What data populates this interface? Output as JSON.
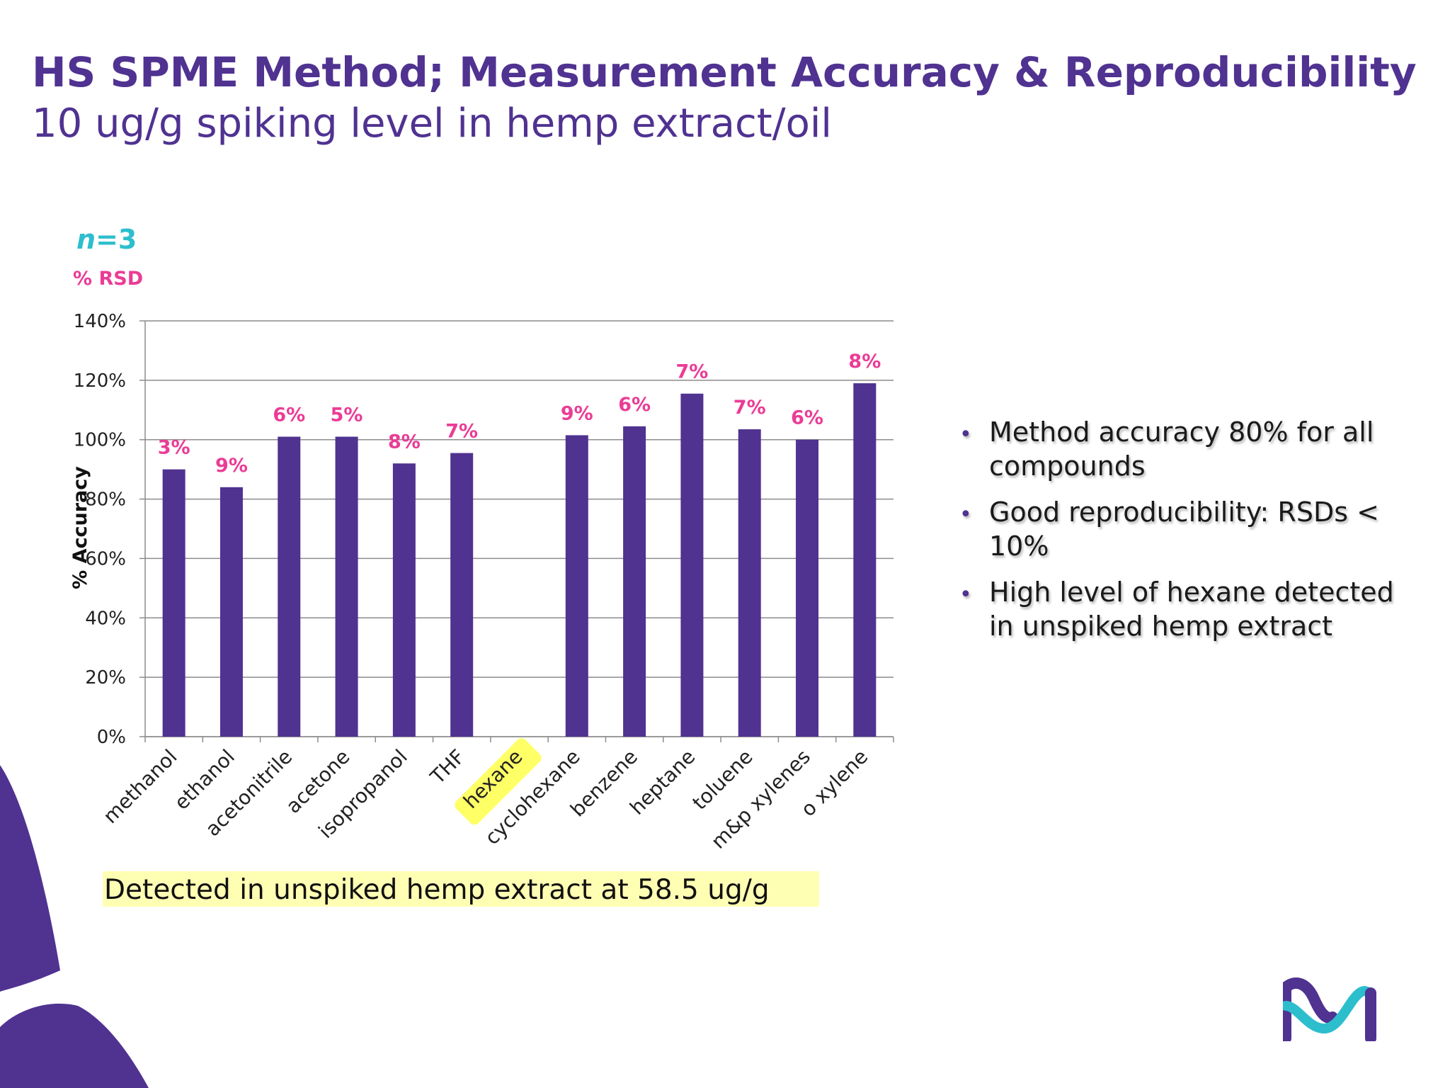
{
  "slide": {
    "title": "HS SPME Method; Measurement Accuracy & Reproducibility",
    "subtitle": "10 ug/g spiking level in hemp extract/oil",
    "n_label_var": "n",
    "n_label_rest": "=3",
    "rsd_label": "% RSD",
    "footnote": "Detected in unspiked hemp extract at 58.5 ug/g",
    "bullets": [
      "Method accuracy 80% for all compounds",
      "Good reproducibility: RSDs < 10%",
      "High level of hexane detected in unspiked hemp extract"
    ],
    "bullet_symbol": "•"
  },
  "colors": {
    "bar": "#503291",
    "title": "#503291",
    "rsd": "#eb3c96",
    "n_label": "#2dbecd",
    "highlight": "#ffffb4",
    "hexane_highlight": "#ffff66"
  },
  "chart_data": {
    "type": "bar",
    "ylabel": "% Accuracy",
    "ylim": [
      0,
      140
    ],
    "yticks": [
      0,
      20,
      40,
      60,
      80,
      100,
      120,
      140
    ],
    "ytick_labels": [
      "0%",
      "20%",
      "40%",
      "60%",
      "80%",
      "100%",
      "120%",
      "140%"
    ],
    "grid": true,
    "categories": [
      "methanol",
      "ethanol",
      "acetonitrile",
      "acetone",
      "isopropanol",
      "THF",
      "hexane",
      "cyclohexane",
      "benzene",
      "heptane",
      "toluene",
      "m&p xylenes",
      "o xylene"
    ],
    "values": [
      90,
      84,
      101,
      101,
      92,
      95.5,
      null,
      101.5,
      104.5,
      115.5,
      103.5,
      100,
      119
    ],
    "rsd_labels": [
      "3%",
      "9%",
      "6%",
      "5%",
      "8%",
      "7%",
      "",
      "9%",
      "6%",
      "7%",
      "7%",
      "6%",
      "8%"
    ],
    "highlighted_category": "hexane"
  }
}
